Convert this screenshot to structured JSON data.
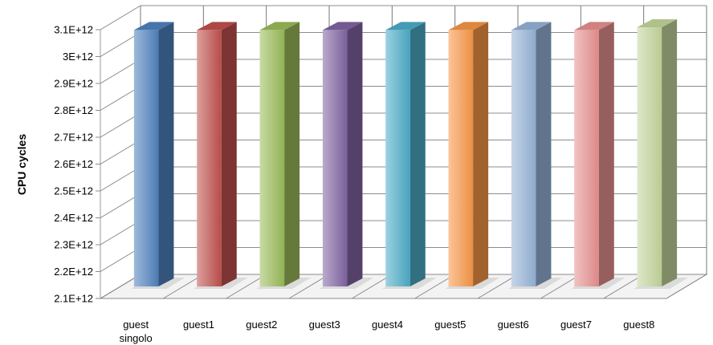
{
  "chart_data": {
    "type": "bar",
    "style": "3d-column",
    "ylabel": "CPU cycles",
    "xlabel": "",
    "title": "",
    "ylim": [
      2100000000000.0,
      3100000000000.0
    ],
    "yticks": [
      2100000000000.0,
      2200000000000.0,
      2300000000000.0,
      2400000000000.0,
      2500000000000.0,
      2600000000000.0,
      2700000000000.0,
      2800000000000.0,
      2900000000000.0,
      3000000000000.0,
      3100000000000.0
    ],
    "ytick_labels": [
      "2.1E+12",
      "2.2E+12",
      "2.3E+12",
      "2.4E+12",
      "2.5E+12",
      "2.6E+12",
      "2.7E+12",
      "2.8E+12",
      "2.9E+12",
      "3E+12",
      "3.1E+12"
    ],
    "categories": [
      [
        "guest",
        "singolo"
      ],
      [
        "guest1"
      ],
      [
        "guest2"
      ],
      [
        "guest3"
      ],
      [
        "guest4"
      ],
      [
        "guest5"
      ],
      [
        "guest6"
      ],
      [
        "guest7"
      ],
      [
        "guest8"
      ]
    ],
    "values": [
      3060000000000.0,
      3060000000000.0,
      3060000000000.0,
      3060000000000.0,
      3060000000000.0,
      3060000000000.0,
      3060000000000.0,
      3060000000000.0,
      3070000000000.0
    ],
    "colors": [
      "#4f81bd",
      "#c0504d",
      "#9bbb59",
      "#8064a2",
      "#4bacc6",
      "#f79646",
      "#95b3d7",
      "#e6908e",
      "#c3d69b"
    ],
    "grid": true,
    "legend": "none"
  }
}
